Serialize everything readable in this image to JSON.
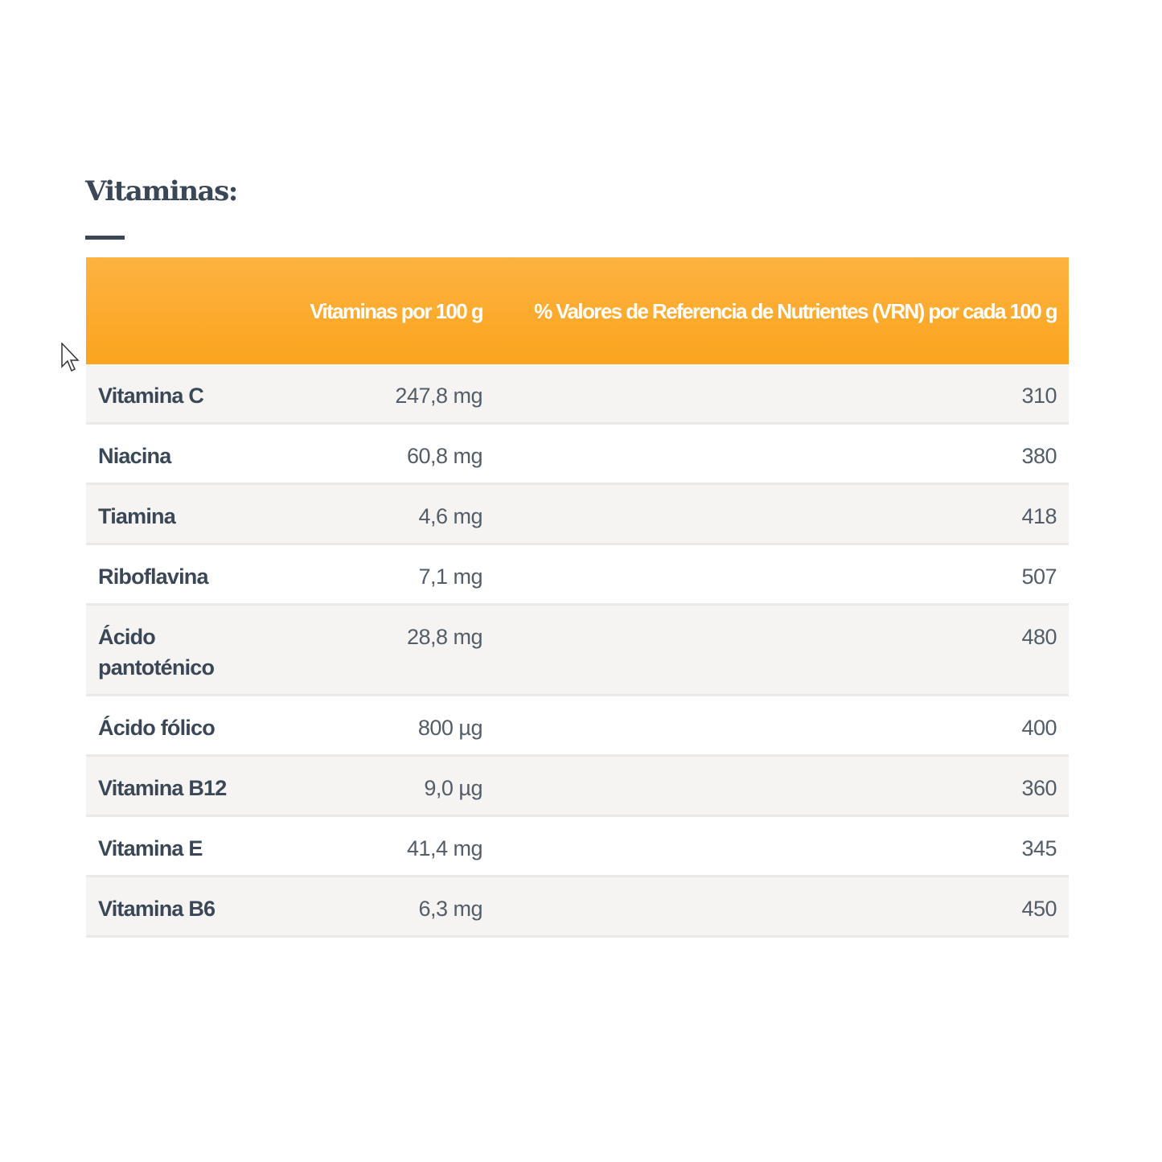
{
  "title": "Vitaminas:",
  "table": {
    "headers": [
      "",
      "Vitaminas por 100 g",
      "% Valores de Referencia de Nutrientes (VRN) por cada 100 g"
    ],
    "rows": [
      {
        "name": "Vitamina C",
        "amount": "247,8 mg",
        "vrn": "310"
      },
      {
        "name": "Niacina",
        "amount": "60,8 mg",
        "vrn": "380"
      },
      {
        "name": "Tiamina",
        "amount": "4,6 mg",
        "vrn": "418"
      },
      {
        "name": "Riboflavina",
        "amount": "7,1 mg",
        "vrn": "507"
      },
      {
        "name": "Ácido pantoténico",
        "amount": "28,8 mg",
        "vrn": "480"
      },
      {
        "name": "Ácido fólico",
        "amount": "800 µg",
        "vrn": "400"
      },
      {
        "name": "Vitamina B12",
        "amount": "9,0 µg",
        "vrn": "360"
      },
      {
        "name": "Vitamina E",
        "amount": "41,4 mg",
        "vrn": "345"
      },
      {
        "name": "Vitamina B6",
        "amount": "6,3 mg",
        "vrn": "450"
      }
    ]
  },
  "colors": {
    "header": "#fba41e",
    "text": "#3a4756",
    "row_alt": "#f5f4f3"
  },
  "cursor_icon": "arrow-pointer"
}
